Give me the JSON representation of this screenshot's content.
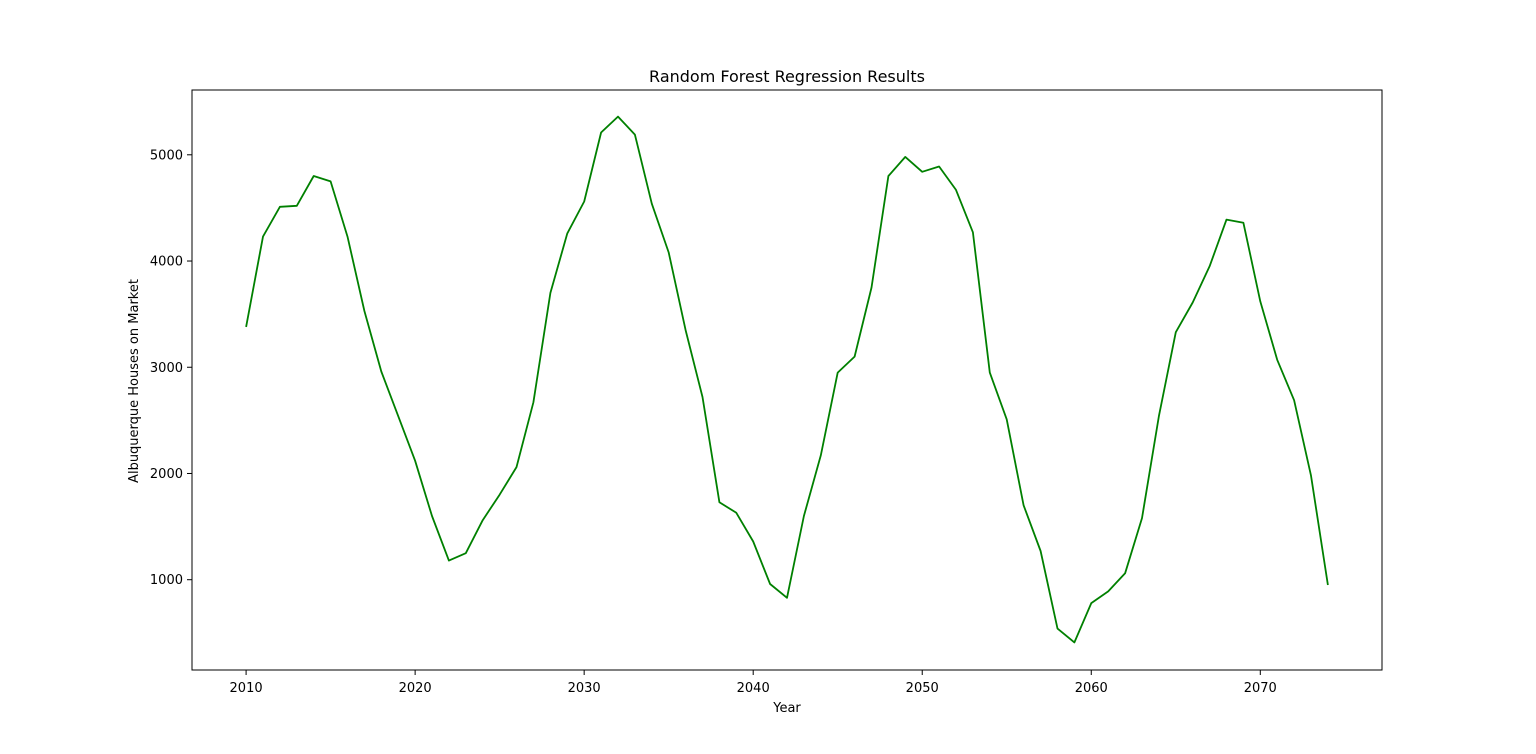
{
  "chart_data": {
    "type": "line",
    "title": "Random Forest Regression Results",
    "xlabel": "Year",
    "ylabel": "Albuquerque Houses on Market",
    "xlim": [
      2006.8,
      2077.2
    ],
    "ylim": [
      150,
      5610
    ],
    "xticks": [
      2010,
      2020,
      2030,
      2040,
      2050,
      2060,
      2070
    ],
    "yticks": [
      1000,
      2000,
      3000,
      4000,
      5000
    ],
    "grid": false,
    "legend": "none",
    "series": [
      {
        "color": "#008000",
        "x": [
          2010,
          2011,
          2012,
          2013,
          2014,
          2015,
          2016,
          2017,
          2018,
          2019,
          2020,
          2021,
          2022,
          2023,
          2024,
          2025,
          2026,
          2027,
          2028,
          2029,
          2030,
          2031,
          2032,
          2033,
          2034,
          2035,
          2036,
          2037,
          2038,
          2039,
          2040,
          2041,
          2042,
          2043,
          2044,
          2045,
          2046,
          2047,
          2048,
          2049,
          2050,
          2051,
          2052,
          2053,
          2054,
          2055,
          2056,
          2057,
          2058,
          2059,
          2060,
          2061,
          2062,
          2063,
          2064,
          2065,
          2066,
          2067,
          2068,
          2069,
          2070,
          2071,
          2072,
          2073,
          2074
        ],
        "values": [
          3380,
          4230,
          4510,
          4520,
          4800,
          4750,
          4230,
          3530,
          2960,
          2540,
          2120,
          1600,
          1180,
          1250,
          1560,
          1800,
          2060,
          2670,
          3700,
          4260,
          4560,
          5210,
          5360,
          5190,
          4540,
          4080,
          3350,
          2720,
          1730,
          1630,
          1360,
          960,
          830,
          1600,
          2170,
          2950,
          3100,
          3750,
          4800,
          4980,
          4840,
          4890,
          4670,
          4270,
          2950,
          2510,
          1700,
          1270,
          540,
          410,
          780,
          890,
          1060,
          1580,
          2540,
          3330,
          3610,
          3950,
          4390,
          4360,
          3620,
          3070,
          2690,
          1980,
          950
        ]
      }
    ]
  }
}
